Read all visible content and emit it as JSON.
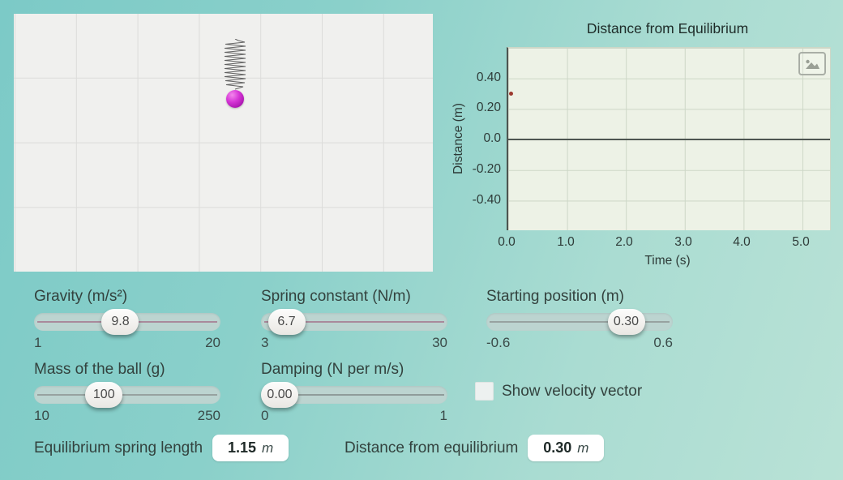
{
  "simulation": {
    "ball_color": "#c724c9",
    "spring_color": "#4a4a4a"
  },
  "chart": {
    "title": "Distance from Equilibrium",
    "xlabel": "Time (s)",
    "ylabel": "Distance (m)",
    "yticks": [
      "0.40",
      "0.20",
      "0.0",
      "-0.20",
      "-0.40"
    ],
    "xticks": [
      "0.0",
      "1.0",
      "2.0",
      "3.0",
      "4.0",
      "5.0"
    ],
    "icon": "image-icon"
  },
  "chart_data": {
    "type": "scatter",
    "title": "Distance from Equilibrium",
    "xlabel": "Time (s)",
    "ylabel": "Distance (m)",
    "xlim": [
      0,
      5.5
    ],
    "ylim": [
      -0.6,
      0.6
    ],
    "grid": true,
    "series": [
      {
        "name": "distance from equilibrium",
        "x": [
          0
        ],
        "y": [
          0.3
        ],
        "color": "#9c3a30"
      }
    ]
  },
  "sliders": [
    {
      "label": "Gravity (m/s²)",
      "value": "9.8",
      "min": "1",
      "max": "20",
      "frac": 0.463,
      "line_color": "#a98a9b"
    },
    {
      "label": "Spring constant (N/m)",
      "value": "6.7",
      "min": "3",
      "max": "30",
      "frac": 0.137,
      "line_color": "#a98a9b"
    },
    {
      "label": "Starting position (m)",
      "value": "0.30",
      "min": "-0.6",
      "max": "0.6",
      "frac": 0.75,
      "line_color": "#97a2a0"
    },
    {
      "label": "Mass of the ball (g)",
      "value": "100",
      "min": "10",
      "max": "250",
      "frac": 0.375,
      "line_color": "#97a2a0"
    },
    {
      "label": "Damping (N per m/s)",
      "value": "0.00",
      "min": "0",
      "max": "1",
      "frac": 0.0,
      "line_color": "#8f9c9a"
    }
  ],
  "checkbox": {
    "label": "Show velocity vector",
    "checked": false
  },
  "readouts": [
    {
      "label": "Equilibrium spring length",
      "value": "1.15",
      "unit": "m"
    },
    {
      "label": "Distance from equilibrium",
      "value": "0.30",
      "unit": "m"
    }
  ]
}
